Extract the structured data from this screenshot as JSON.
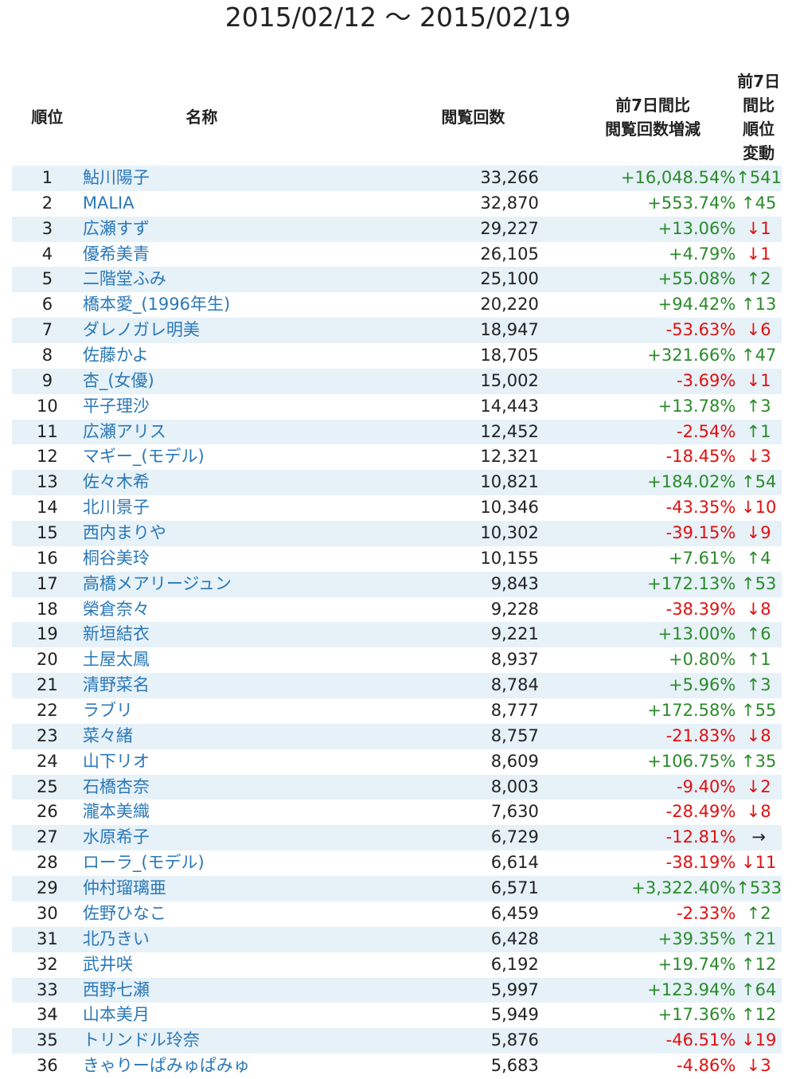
{
  "title": "2015/02/12 〜 2015/02/19",
  "table": {
    "header": [
      "順位",
      "名称",
      "閲覧回数",
      [
        "前7日間比",
        "閲覧回数増減"
      ],
      [
        "前7日間比",
        "順位変動"
      ]
    ],
    "rows": [
      [
        1,
        "鮎川陽子",
        "33,266",
        "+16,048.54%",
        "↑541"
      ],
      [
        2,
        "MALIA",
        "32,870",
        "+553.74%",
        "↑45"
      ],
      [
        3,
        "広瀬すず",
        "29,227",
        "+13.06%",
        "↓1"
      ],
      [
        4,
        "優希美青",
        "26,105",
        "+4.79%",
        "↓1"
      ],
      [
        5,
        "二階堂ふみ",
        "25,100",
        "+55.08%",
        "↑2"
      ],
      [
        6,
        "橋本愛_(1996年生)",
        "20,220",
        "+94.42%",
        "↑13"
      ],
      [
        7,
        "ダレノガレ明美",
        "18,947",
        "-53.63%",
        "↓6"
      ],
      [
        8,
        "佐藤かよ",
        "18,705",
        "+321.66%",
        "↑47"
      ],
      [
        9,
        "杏_(女優)",
        "15,002",
        "-3.69%",
        "↓1"
      ],
      [
        10,
        "平子理沙",
        "14,443",
        "+13.78%",
        "↑3"
      ],
      [
        11,
        "広瀬アリス",
        "12,452",
        "-2.54%",
        "↑1"
      ],
      [
        12,
        "マギー_(モデル)",
        "12,321",
        "-18.45%",
        "↓3"
      ],
      [
        13,
        "佐々木希",
        "10,821",
        "+184.02%",
        "↑54"
      ],
      [
        14,
        "北川景子",
        "10,346",
        "-43.35%",
        "↓10"
      ],
      [
        15,
        "西内まりや",
        "10,302",
        "-39.15%",
        "↓9"
      ],
      [
        16,
        "桐谷美玲",
        "10,155",
        "+7.61%",
        "↑4"
      ],
      [
        17,
        "高橋メアリージュン",
        "9,843",
        "+172.13%",
        "↑53"
      ],
      [
        18,
        "榮倉奈々",
        "9,228",
        "-38.39%",
        "↓8"
      ],
      [
        19,
        "新垣結衣",
        "9,221",
        "+13.00%",
        "↑6"
      ],
      [
        20,
        "土屋太鳳",
        "8,937",
        "+0.80%",
        "↑1"
      ],
      [
        21,
        "清野菜名",
        "8,784",
        "+5.96%",
        "↑3"
      ],
      [
        22,
        "ラブリ",
        "8,777",
        "+172.58%",
        "↑55"
      ],
      [
        23,
        "菜々緒",
        "8,757",
        "-21.83%",
        "↓8"
      ],
      [
        24,
        "山下リオ",
        "8,609",
        "+106.75%",
        "↑35"
      ],
      [
        25,
        "石橋杏奈",
        "8,003",
        "-9.40%",
        "↓2"
      ],
      [
        26,
        "瀧本美織",
        "7,630",
        "-28.49%",
        "↓8"
      ],
      [
        27,
        "水原希子",
        "6,729",
        "-12.81%",
        "→"
      ],
      [
        28,
        "ローラ_(モデル)",
        "6,614",
        "-38.19%",
        "↓11"
      ],
      [
        29,
        "仲村瑠璃亜",
        "6,571",
        "+3,322.40%",
        "↑533"
      ],
      [
        30,
        "佐野ひなこ",
        "6,459",
        "-2.33%",
        "↑2"
      ],
      [
        31,
        "北乃きい",
        "6,428",
        "+39.35%",
        "↑21"
      ],
      [
        32,
        "武井咲",
        "6,192",
        "+19.74%",
        "↑12"
      ],
      [
        33,
        "西野七瀬",
        "5,997",
        "+123.94%",
        "↑64"
      ],
      [
        34,
        "山本美月",
        "5,949",
        "+17.36%",
        "↑12"
      ],
      [
        35,
        "トリンドル玲奈",
        "5,876",
        "-46.51%",
        "↓19"
      ],
      [
        36,
        "きゃりーぱみゅぱみゅ",
        "5,683",
        "-4.86%",
        "↓3"
      ]
    ]
  }
}
